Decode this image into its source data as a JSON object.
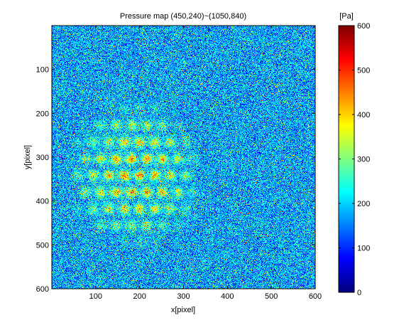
{
  "chart_data": {
    "type": "heatmap",
    "title": "Pressure map (450,240)~(1050,840)",
    "xlabel": "x[pixel]",
    "ylabel": "y[pixel]",
    "xlim": [
      0,
      600
    ],
    "ylim": [
      0,
      600
    ],
    "y_direction": "reversed",
    "xticks": [
      100,
      200,
      300,
      400,
      500,
      600
    ],
    "yticks": [
      100,
      200,
      300,
      400,
      500,
      600
    ],
    "colorbar": {
      "label": "[Pa]",
      "colormap": "jet",
      "range": [
        0,
        600
      ],
      "ticks": [
        0,
        100,
        200,
        300,
        400,
        500,
        600
      ],
      "placement": "right"
    },
    "noise_mean_pa": 170,
    "hotspot_region": {
      "x_range": [
        40,
        330
      ],
      "y_range": [
        180,
        510
      ],
      "peak_pa": 420
    },
    "grid": false
  }
}
